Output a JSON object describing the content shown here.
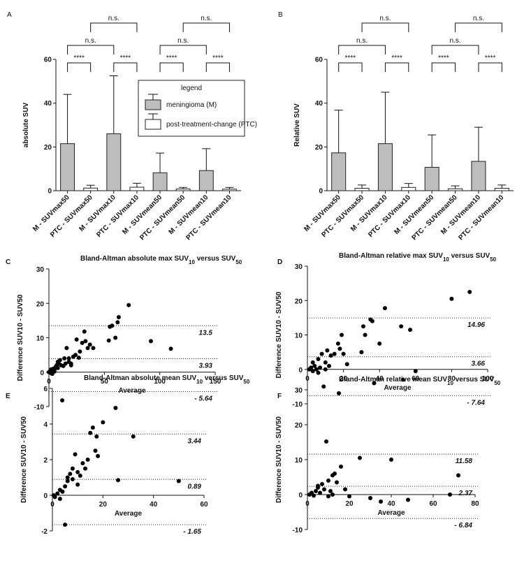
{
  "chart_data": [
    {
      "type": "bar",
      "panel": "A",
      "ylabel": "absolute SUV",
      "categories": [
        "M - SUVmax50",
        "PTC - SUVmax50",
        "M - SUVmax10",
        "PTC - SUVmax10",
        "M - SUVmean50",
        "PTC - SUVmean50",
        "M - SUVmean10",
        "PTC - SUVmean10"
      ],
      "series": [
        {
          "name": "meningioma (M)",
          "color": "#bdbdbd",
          "values": [
            21.5,
            null,
            26,
            null,
            8.2,
            null,
            9.2,
            null
          ],
          "errors": [
            22.5,
            null,
            26.5,
            null,
            9,
            null,
            10,
            null
          ]
        },
        {
          "name": "post-treatment-change (PTC)",
          "color": "#ffffff",
          "values": [
            null,
            1.2,
            null,
            1.6,
            null,
            0.8,
            null,
            0.7
          ],
          "errors": [
            null,
            1.3,
            null,
            1.8,
            null,
            0.7,
            null,
            0.8
          ]
        }
      ],
      "legend_title": "legend",
      "ylim": [
        0,
        60
      ],
      "yticks": [
        0,
        20,
        40,
        60
      ],
      "annotations": [
        "****",
        "****",
        "****",
        "****",
        "n.s.",
        "n.s.",
        "n.s.",
        "n.s."
      ]
    },
    {
      "type": "bar",
      "panel": "B",
      "ylabel": "Relative SUV",
      "categories": [
        "M - SUVmax50",
        "PTC - SUVmax50",
        "M - SUVmax10",
        "PTC - SUVmax10",
        "M - SUVmean50",
        "PTC - SUVmean50",
        "M - SUVmean10",
        "PTC - SUVmean10"
      ],
      "series": [
        {
          "color": "#bdbdbd",
          "values": [
            17.3,
            null,
            21.5,
            null,
            10.7,
            null,
            13.4,
            null
          ],
          "errors": [
            19.5,
            null,
            23.5,
            null,
            14.8,
            null,
            15.6,
            null
          ]
        },
        {
          "color": "#ffffff",
          "values": [
            null,
            1.1,
            null,
            1.5,
            null,
            0.9,
            null,
            1.1
          ],
          "errors": [
            null,
            1.5,
            null,
            1.8,
            null,
            1.3,
            null,
            1.5
          ]
        }
      ],
      "ylim": [
        0,
        60
      ],
      "yticks": [
        0,
        20,
        40,
        60
      ],
      "annotations": [
        "****",
        "****",
        "****",
        "****",
        "n.s.",
        "n.s.",
        "n.s.",
        "n.s."
      ]
    },
    {
      "type": "scatter",
      "panel": "C",
      "title": [
        "Bland-Altman absolute max SUV",
        "10",
        " versus SUV",
        "50"
      ],
      "xlabel": "Average",
      "ylabel": "Difference SUV10 - SUV50",
      "color": "#000000",
      "x": [
        0,
        1,
        2,
        3,
        4,
        5,
        6,
        7,
        8,
        9,
        10,
        11,
        12,
        13,
        14,
        15,
        16,
        18,
        20,
        22,
        24,
        25,
        27,
        28,
        30,
        32,
        33,
        35,
        37,
        40,
        55,
        54,
        57,
        60,
        62,
        63,
        72,
        92,
        110,
        3,
        5,
        2,
        8,
        18,
        20
      ],
      "values": [
        0,
        0.2,
        -0.3,
        0.5,
        1,
        0.8,
        1.5,
        2,
        1.2,
        2.5,
        3.5,
        2,
        -8.2,
        1.8,
        4,
        2.5,
        7,
        3,
        2.5,
        4.5,
        5,
        9.5,
        4.2,
        6,
        8.5,
        11.8,
        9,
        7,
        8,
        7,
        13.2,
        9.2,
        13.5,
        10,
        14.5,
        16,
        19.5,
        9,
        6.8,
        -0.5,
        0.2,
        0.8,
        3,
        4,
        2
      ],
      "ref_lines": [
        13.5,
        3.93,
        {
          "value": -5.64,
          "label": "- 5.64"
        }
      ],
      "xlim": [
        0,
        150
      ],
      "xticks": [
        0,
        50,
        100,
        150
      ],
      "ylim": [
        -10,
        30
      ],
      "yticks": [
        -10,
        0,
        10,
        20,
        30
      ]
    },
    {
      "type": "scatter",
      "panel": "D",
      "title": [
        "Bland-Altman relative max SUV",
        "10",
        " versus SUV",
        "50"
      ],
      "xlabel": "Average",
      "ylabel": "Difference SUV10 - SUV50",
      "color": "#000000",
      "x": [
        1,
        2,
        3,
        4,
        5,
        6,
        7,
        8,
        9,
        10,
        11,
        12,
        13,
        15,
        17,
        18,
        19,
        20,
        22,
        30,
        31,
        32,
        35,
        36,
        37,
        40,
        43,
        52,
        53,
        57,
        60,
        80,
        90,
        3,
        6,
        10
      ],
      "values": [
        0,
        0.5,
        -0.5,
        1,
        0,
        -1,
        0.5,
        4.5,
        -5,
        2,
        5.5,
        1,
        4,
        4.5,
        7.5,
        6,
        10,
        4.5,
        1.5,
        5,
        12.5,
        10,
        14.5,
        14,
        -4,
        7.5,
        17.8,
        12.5,
        -3,
        11.5,
        -0.5,
        20.5,
        22.5,
        2,
        3,
        0
      ],
      "ref_lines": [
        14.96,
        3.66,
        {
          "value": -7.64,
          "label": "- 7.64"
        }
      ],
      "xlim": [
        0,
        100
      ],
      "xticks": [
        0,
        20,
        40,
        60,
        80,
        100
      ],
      "ylim": [
        -10,
        30
      ],
      "yticks": [
        -10,
        0,
        10,
        20,
        30
      ]
    },
    {
      "type": "scatter",
      "panel": "E",
      "title": [
        "Bland-Altman absolute mean SUV",
        "10",
        " versus SUV",
        "50"
      ],
      "xlabel": "Average",
      "ylabel": "Difference SUV10 - SUV50",
      "color": "#000000",
      "x": [
        0.5,
        1,
        2,
        3,
        4,
        5,
        6,
        7,
        8,
        9,
        10,
        11,
        12,
        13,
        15,
        16,
        17,
        17.5,
        18,
        20,
        25,
        26,
        32,
        50,
        5,
        3,
        6,
        8,
        10,
        14
      ],
      "values": [
        0,
        -0.1,
        0.1,
        0.3,
        0.2,
        0.5,
        0.8,
        1.2,
        1.5,
        2.3,
        1.3,
        1.1,
        1.8,
        1.5,
        3.5,
        3.8,
        2.5,
        3.3,
        2.2,
        4.1,
        4.9,
        0.85,
        3.3,
        0.8,
        -1.65,
        -0.2,
        1,
        0.9,
        0.6,
        2
      ],
      "ref_lines": [
        3.44,
        0.89,
        {
          "value": -1.65,
          "label": "- 1.65"
        }
      ],
      "xlim": [
        0,
        60
      ],
      "xticks": [
        0,
        20,
        40,
        60
      ],
      "ylim": [
        -2,
        6
      ],
      "yticks": [
        -2,
        0,
        2,
        4,
        6
      ]
    },
    {
      "type": "scatter",
      "panel": "F",
      "title": [
        "Bland-Altman relative mean SUV",
        "10",
        " versus SUV",
        "50"
      ],
      "xlabel": "Average",
      "ylabel": "Difference SUV10 - SUV50",
      "color": "#000000",
      "x": [
        1,
        2,
        3,
        4,
        5,
        6,
        7,
        8,
        9,
        10,
        11,
        12,
        13,
        14,
        15,
        16,
        18,
        20,
        25,
        30,
        35,
        40,
        48,
        68,
        72,
        5,
        10,
        12
      ],
      "values": [
        0,
        0.5,
        -0.3,
        1,
        2,
        0.5,
        3,
        1.5,
        15.2,
        4,
        1,
        5.5,
        6,
        3.5,
        29,
        8,
        1.5,
        -0.5,
        10.5,
        -1,
        -2,
        10,
        -1.5,
        0,
        5.5,
        2.5,
        -0.5,
        0
      ],
      "ref_lines": [
        11.58,
        2.37,
        {
          "value": -6.84,
          "label": "- 6.84"
        }
      ],
      "xlim": [
        0,
        80
      ],
      "xticks": [
        0,
        20,
        40,
        60,
        80
      ],
      "ylim": [
        -10,
        30
      ],
      "yticks": [
        -10,
        0,
        10,
        20,
        30
      ]
    }
  ]
}
